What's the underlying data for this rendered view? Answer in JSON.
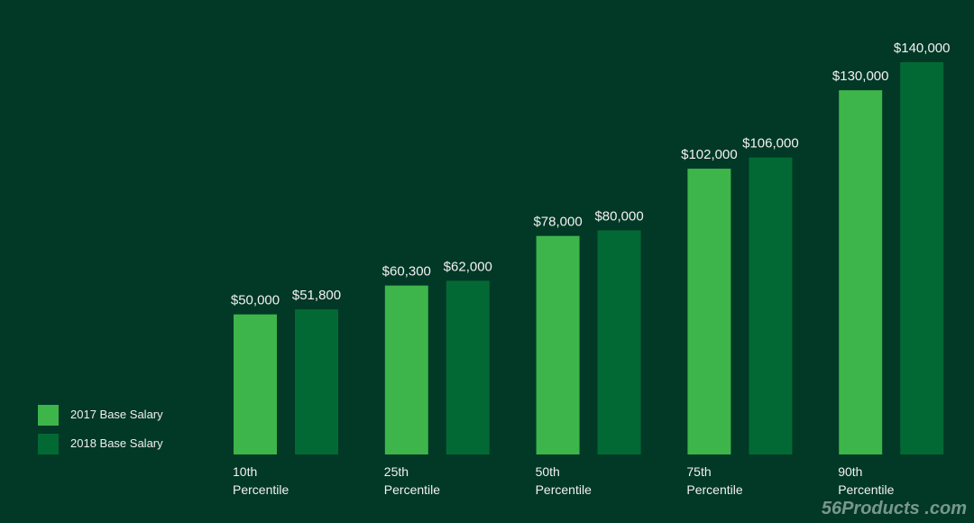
{
  "chart_data": {
    "type": "bar",
    "title": "",
    "xlabel": "",
    "ylabel": "",
    "ylim": [
      0,
      140000
    ],
    "grid": false,
    "legend_placement": "bottom-left",
    "categories": [
      [
        "10th",
        "Percentile"
      ],
      [
        "25th",
        "Percentile"
      ],
      [
        "50th",
        "Percentile"
      ],
      [
        "75th",
        "Percentile"
      ],
      [
        "90th",
        "Percentile"
      ]
    ],
    "series": [
      {
        "name": "2017 Base Salary",
        "color": "#3db54a",
        "values": [
          50000,
          60300,
          78000,
          102000,
          130000
        ],
        "labels": [
          "$50,000",
          "$60,300",
          "$78,000",
          "$102,000",
          "$130,000"
        ]
      },
      {
        "name": "2018 Base Salary",
        "color": "#036934",
        "values": [
          51800,
          62000,
          80000,
          106000,
          140000
        ],
        "labels": [
          "$51,800",
          "$62,000",
          "$80,000",
          "$106,000",
          "$140,000"
        ]
      }
    ]
  },
  "watermark": "56Products .com"
}
